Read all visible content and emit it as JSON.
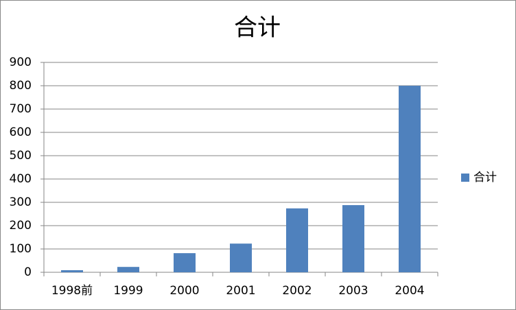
{
  "chart_data": {
    "type": "bar",
    "title": "合计",
    "categories": [
      "1998前",
      "1999",
      "2000",
      "2001",
      "2002",
      "2003",
      "2004"
    ],
    "series": [
      {
        "name": "合计",
        "color": "#4f81bd",
        "values": [
          9,
          23,
          82,
          123,
          274,
          288,
          800
        ]
      }
    ],
    "ylim": [
      0,
      900
    ],
    "yticks": [
      0,
      100,
      200,
      300,
      400,
      500,
      600,
      700,
      800,
      900
    ],
    "grid": true,
    "legend": "right"
  }
}
